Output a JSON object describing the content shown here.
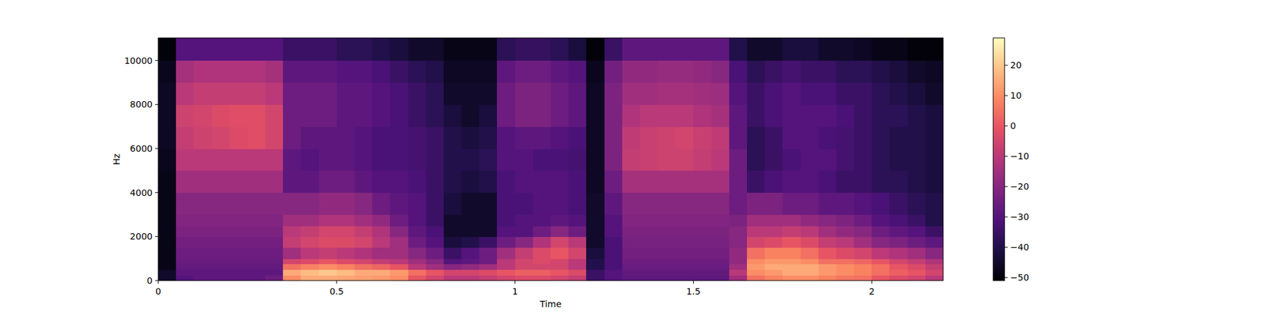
{
  "chart_data": {
    "type": "heatmap",
    "x_label": "Time",
    "y_label": "Hz",
    "x_bins": [
      0,
      0.05,
      0.1,
      0.15,
      0.2,
      0.25,
      0.3,
      0.35,
      0.4,
      0.45,
      0.5,
      0.55,
      0.6,
      0.65,
      0.7,
      0.75,
      0.8,
      0.85,
      0.9,
      0.95,
      1,
      1.05,
      1.1,
      1.15,
      1.2,
      1.25,
      1.3,
      1.35,
      1.4,
      1.45,
      1.5,
      1.55,
      1.6,
      1.65,
      1.7,
      1.75,
      1.8,
      1.85,
      1.9,
      1.95,
      2,
      2.05,
      2.1,
      2.15,
      2.2
    ],
    "y_bins": [
      0,
      250,
      500,
      750,
      1000,
      1500,
      2000,
      2500,
      3000,
      4000,
      5000,
      6000,
      7000,
      8000,
      9000,
      10000,
      11025
    ],
    "values": [
      [
        -45,
        -30,
        -28,
        -28,
        -28,
        -28,
        -25,
        10,
        15,
        15,
        14,
        13,
        12,
        10,
        0,
        -5,
        -10,
        -10,
        -8,
        -5,
        -3,
        -3,
        -5,
        -8,
        -35,
        -30,
        -28,
        -28,
        -28,
        -28,
        -28,
        -28,
        -15,
        5,
        8,
        10,
        10,
        8,
        6,
        5,
        0,
        -3,
        -5,
        -10
      ],
      [
        -45,
        -28,
        -28,
        -28,
        -28,
        -28,
        -28,
        15,
        18,
        20,
        18,
        15,
        15,
        12,
        5,
        0,
        -5,
        -5,
        -3,
        0,
        2,
        2,
        0,
        -3,
        -35,
        -30,
        -27,
        -27,
        -27,
        -27,
        -27,
        -27,
        -10,
        10,
        12,
        15,
        15,
        12,
        10,
        8,
        5,
        2,
        0,
        -5
      ],
      [
        -48,
        -27,
        -27,
        -27,
        -27,
        -27,
        -27,
        5,
        8,
        10,
        8,
        5,
        3,
        0,
        -10,
        -15,
        -20,
        -18,
        -15,
        -10,
        -5,
        -5,
        -5,
        -10,
        -40,
        -32,
        -26,
        -26,
        -26,
        -26,
        -26,
        -26,
        -15,
        12,
        15,
        15,
        15,
        12,
        10,
        8,
        5,
        0,
        -3,
        -8
      ],
      [
        -48,
        -26,
        -26,
        -26,
        -26,
        -26,
        -26,
        -5,
        -3,
        0,
        -3,
        -5,
        -8,
        -10,
        -15,
        -20,
        -30,
        -28,
        -25,
        -10,
        -5,
        -3,
        -5,
        -10,
        -40,
        -32,
        -25,
        -25,
        -25,
        -25,
        -25,
        -25,
        -18,
        10,
        12,
        12,
        10,
        5,
        5,
        3,
        0,
        -5,
        -8,
        -12
      ],
      [
        -48,
        -25,
        -25,
        -25,
        -25,
        -25,
        -25,
        -15,
        -10,
        -8,
        -10,
        -12,
        -15,
        -15,
        -20,
        -25,
        -35,
        -30,
        -25,
        -15,
        -8,
        -3,
        0,
        -5,
        -42,
        -32,
        -24,
        -24,
        -24,
        -24,
        -24,
        -24,
        -18,
        5,
        8,
        8,
        5,
        0,
        -3,
        -5,
        -10,
        -12,
        -15,
        -20
      ],
      [
        -48,
        -24,
        -24,
        -24,
        -24,
        -24,
        -24,
        -8,
        -5,
        -3,
        -3,
        -5,
        -10,
        -15,
        -25,
        -30,
        -42,
        -40,
        -35,
        -25,
        -20,
        -12,
        -5,
        -10,
        -45,
        -32,
        -23,
        -23,
        -23,
        -23,
        -23,
        -23,
        -20,
        -5,
        -3,
        0,
        -3,
        -8,
        -10,
        -15,
        -20,
        -22,
        -25,
        -28
      ],
      [
        -48,
        -22,
        -22,
        -22,
        -22,
        -22,
        -22,
        -10,
        -8,
        -5,
        -5,
        -8,
        -12,
        -20,
        -28,
        -32,
        -45,
        -45,
        -45,
        -30,
        -30,
        -25,
        -20,
        -25,
        -45,
        -30,
        -22,
        -22,
        -22,
        -22,
        -22,
        -22,
        -20,
        -10,
        -10,
        -8,
        -10,
        -15,
        -18,
        -20,
        -25,
        -28,
        -30,
        -35
      ],
      [
        -48,
        -21,
        -21,
        -21,
        -21,
        -21,
        -21,
        -15,
        -15,
        -12,
        -12,
        -15,
        -18,
        -25,
        -30,
        -35,
        -45,
        -45,
        -45,
        -32,
        -30,
        -30,
        -28,
        -30,
        -45,
        -30,
        -21,
        -21,
        -21,
        -21,
        -21,
        -21,
        -22,
        -15,
        -15,
        -15,
        -18,
        -20,
        -22,
        -25,
        -30,
        -32,
        -35,
        -40
      ],
      [
        -48,
        -20,
        -20,
        -20,
        -20,
        -20,
        -20,
        -20,
        -20,
        -18,
        -18,
        -20,
        -25,
        -28,
        -30,
        -35,
        -42,
        -45,
        -45,
        -32,
        -32,
        -30,
        -30,
        -32,
        -45,
        -28,
        -20,
        -20,
        -20,
        -20,
        -20,
        -20,
        -25,
        -22,
        -22,
        -25,
        -25,
        -28,
        -28,
        -30,
        -32,
        -35,
        -38,
        -40
      ],
      [
        -48,
        -15,
        -15,
        -15,
        -15,
        -15,
        -15,
        -28,
        -28,
        -25,
        -25,
        -28,
        -30,
        -30,
        -32,
        -35,
        -40,
        -42,
        -40,
        -32,
        -30,
        -30,
        -30,
        -32,
        -46,
        -25,
        -14,
        -14,
        -14,
        -14,
        -14,
        -14,
        -25,
        -35,
        -32,
        -30,
        -30,
        -32,
        -35,
        -35,
        -38,
        -38,
        -40,
        -42
      ],
      [
        -47,
        -10,
        -10,
        -10,
        -10,
        -10,
        -10,
        -28,
        -30,
        -28,
        -28,
        -30,
        -32,
        -32,
        -33,
        -35,
        -40,
        -40,
        -38,
        -30,
        -30,
        -32,
        -32,
        -33,
        -46,
        -22,
        -8,
        -7,
        -6,
        -6,
        -8,
        -10,
        -25,
        -38,
        -35,
        -32,
        -30,
        -30,
        -33,
        -35,
        -38,
        -40,
        -40,
        -42
      ],
      [
        -46,
        -8,
        -6,
        -5,
        -3,
        -2,
        -5,
        -25,
        -28,
        -28,
        -28,
        -30,
        -32,
        -32,
        -33,
        -35,
        -40,
        -42,
        -40,
        -30,
        -28,
        -28,
        -30,
        -32,
        -46,
        -22,
        -9,
        -7,
        -6,
        -5,
        -7,
        -9,
        -28,
        -38,
        -35,
        -30,
        -30,
        -32,
        -33,
        -35,
        -38,
        -40,
        -40,
        -42
      ],
      [
        -46,
        -6,
        -5,
        -3,
        -2,
        -2,
        -5,
        -25,
        -25,
        -25,
        -28,
        -28,
        -30,
        -32,
        -35,
        -38,
        -42,
        -45,
        -42,
        -25,
        -22,
        -22,
        -25,
        -28,
        -46,
        -22,
        -12,
        -10,
        -10,
        -10,
        -12,
        -14,
        -28,
        -35,
        -32,
        -30,
        -30,
        -30,
        -32,
        -35,
        -38,
        -38,
        -40,
        -42
      ],
      [
        -46,
        -10,
        -8,
        -8,
        -8,
        -8,
        -10,
        -25,
        -25,
        -25,
        -28,
        -28,
        -30,
        -32,
        -35,
        -38,
        -45,
        -45,
        -45,
        -25,
        -22,
        -22,
        -25,
        -28,
        -46,
        -22,
        -15,
        -15,
        -14,
        -14,
        -15,
        -16,
        -30,
        -35,
        -32,
        -30,
        -32,
        -32,
        -35,
        -35,
        -38,
        -40,
        -42,
        -45
      ],
      [
        -47,
        -14,
        -12,
        -12,
        -12,
        -12,
        -14,
        -28,
        -28,
        -28,
        -30,
        -30,
        -32,
        -35,
        -38,
        -40,
        -46,
        -46,
        -46,
        -28,
        -25,
        -25,
        -28,
        -30,
        -47,
        -24,
        -18,
        -18,
        -17,
        -17,
        -18,
        -20,
        -32,
        -38,
        -35,
        -33,
        -35,
        -35,
        -38,
        -38,
        -40,
        -42,
        -45,
        -46
      ],
      [
        -50,
        -30,
        -30,
        -30,
        -30,
        -30,
        -30,
        -35,
        -35,
        -35,
        -38,
        -38,
        -40,
        -42,
        -45,
        -45,
        -48,
        -48,
        -48,
        -38,
        -36,
        -36,
        -38,
        -42,
        -50,
        -35,
        -28,
        -28,
        -28,
        -28,
        -28,
        -28,
        -40,
        -45,
        -45,
        -42,
        -42,
        -45,
        -45,
        -46,
        -48,
        -48,
        -50,
        -50
      ]
    ],
    "xlim": [
      0,
      2.2
    ],
    "ylim": [
      0,
      11025
    ],
    "xticks": [
      0,
      0.5,
      1,
      1.5,
      2
    ],
    "yticks": [
      0,
      2000,
      4000,
      6000,
      8000,
      10000
    ],
    "colorbar": {
      "range": [
        -51,
        29
      ],
      "ticks": [
        20,
        10,
        0,
        {
          "value": -10,
          "label": "−10"
        },
        {
          "value": -20,
          "label": "−20"
        },
        {
          "value": -30,
          "label": "−30"
        },
        {
          "value": -40,
          "label": "−40"
        },
        {
          "value": -50,
          "label": "−50"
        }
      ]
    }
  }
}
